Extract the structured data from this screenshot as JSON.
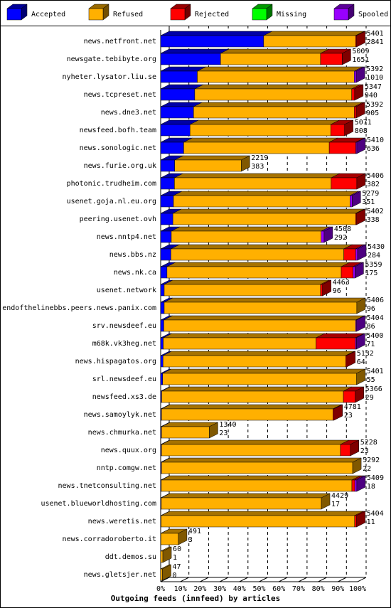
{
  "chart_data": {
    "type": "stacked-bar-3d",
    "title": "Outgoing feeds (innfeed) by articles",
    "categories": [
      "news.netfront.net",
      "newsgate.tebibyte.org",
      "nyheter.lysator.liu.se",
      "news.tcpreset.net",
      "news.dne3.net",
      "newsfeed.bofh.team",
      "news.sonologic.net",
      "news.furie.org.uk",
      "photonic.trudheim.com",
      "usenet.goja.nl.eu.org",
      "peering.usenet.ovh",
      "news.nntp4.net",
      "news.bbs.nz",
      "news.nk.ca",
      "usenet.network",
      "endofthelinebbs.peers.news.panix.com",
      "srv.newsdeef.eu",
      "m68k.vk3heg.net",
      "news.hispagatos.org",
      "srl.newsdeef.eu",
      "newsfeed.xs3.de",
      "news.samoylyk.net",
      "news.chmurka.net",
      "news.quux.org",
      "nntp.comgw.net",
      "news.tnetconsulting.net",
      "usenet.blueworldhosting.com",
      "news.weretis.net",
      "news.corradoroberto.it",
      "ddt.demos.su",
      "news.gletsjer.net"
    ],
    "series": [
      {
        "name": "Accepted",
        "color": "#0000ff",
        "values": [
          52.3,
          30.4,
          18.6,
          17.3,
          16.7,
          14.9,
          11.7,
          7.1,
          7.0,
          6.5,
          6.2,
          5.4,
          5.2,
          3.2,
          1.8,
          1.8,
          1.6,
          1.3,
          1.2,
          1.0,
          0.5,
          0.4,
          0.4,
          0.4,
          0.4,
          0.3,
          0.3,
          0.2,
          0.1,
          0,
          0
        ]
      },
      {
        "name": "Refused",
        "color": "#ffb000",
        "values": [
          46.7,
          50.8,
          79.7,
          79.7,
          81.6,
          71.5,
          73.9,
          33.8,
          79.6,
          89.7,
          92.8,
          76.1,
          87.8,
          88.5,
          79.4,
          97.8,
          97.4,
          77.6,
          92.8,
          98.5,
          92.3,
          87.1,
          24.3,
          90.9,
          97.1,
          96.8,
          81.3,
          98.3,
          8.9,
          1.1,
          0.9
        ]
      },
      {
        "name": "Rejected",
        "color": "#ff0000",
        "values": [
          0.5,
          11,
          0,
          1.5,
          1,
          7,
          13.5,
          0,
          13,
          0,
          0.5,
          0,
          6,
          6,
          1,
          0,
          0,
          20,
          0.5,
          0,
          6,
          0.5,
          0,
          5,
          0,
          1.5,
          0,
          1,
          0,
          0,
          0
        ]
      },
      {
        "name": "Missing",
        "color": "#00ff00",
        "values": [
          0,
          0,
          0,
          0,
          0,
          0,
          0,
          0,
          0,
          0,
          0,
          0,
          0,
          0,
          0,
          0,
          0,
          0,
          0,
          0,
          0,
          0,
          0,
          0,
          0,
          0,
          0,
          0,
          0,
          0,
          0
        ]
      },
      {
        "name": "Spooled",
        "color": "#9900ff",
        "values": [
          0,
          0,
          1,
          0,
          0,
          0,
          0.5,
          0,
          0,
          1,
          0,
          1.5,
          1,
          1,
          0,
          0,
          0.5,
          0.5,
          0,
          0,
          0,
          0,
          0,
          0,
          0,
          1,
          0,
          0,
          0,
          0,
          0
        ]
      }
    ],
    "offered": [
      5401,
      5009,
      5392,
      5347,
      5392,
      5071,
      5410,
      2219,
      5406,
      5279,
      5402,
      4508,
      5430,
      5359,
      4463,
      5406,
      5404,
      5400,
      5132,
      5401,
      5366,
      4781,
      1340,
      5228,
      5292,
      5409,
      4429,
      5404,
      491,
      60,
      47
    ],
    "accepted": [
      2841,
      1651,
      1010,
      940,
      905,
      808,
      636,
      383,
      382,
      351,
      338,
      292,
      284,
      175,
      96,
      96,
      86,
      71,
      64,
      55,
      29,
      23,
      23,
      23,
      22,
      18,
      17,
      11,
      3,
      1,
      0
    ],
    "xlim": [
      0,
      100
    ],
    "xticks": [
      {
        "value": 0,
        "label": "0%"
      },
      {
        "value": 10,
        "label": "10%"
      },
      {
        "value": 20,
        "label": "20%"
      },
      {
        "value": 30,
        "label": "30%"
      },
      {
        "value": 40,
        "label": "40%"
      },
      {
        "value": 50,
        "label": "50%"
      },
      {
        "value": 60,
        "label": "60%"
      },
      {
        "value": 70,
        "label": "70%"
      },
      {
        "value": 80,
        "label": "80%"
      },
      {
        "value": 90,
        "label": "90%"
      },
      {
        "value": 100,
        "label": "100%"
      }
    ],
    "grid": true
  }
}
